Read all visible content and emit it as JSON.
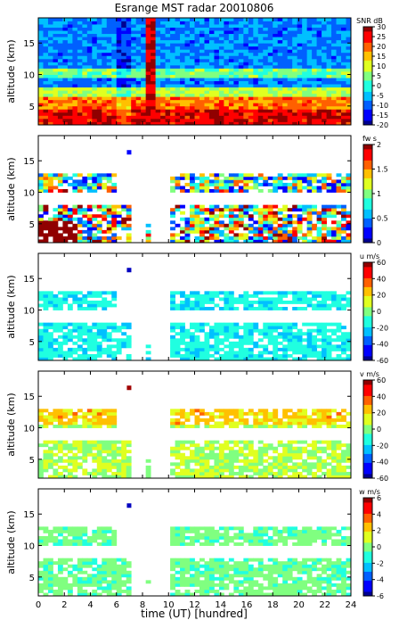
{
  "title": "Esrange MST radar 20010806",
  "xlabel": "time (UT)   [hundred]",
  "colormap": [
    "#000090",
    "#0000ff",
    "#0060ff",
    "#00c0ff",
    "#20ffe0",
    "#80ff80",
    "#e0ff20",
    "#ffc000",
    "#ff6000",
    "#ff0000",
    "#900000"
  ],
  "chart_data": [
    {
      "type": "heatmap",
      "ylabel": "altitude (km)",
      "xlim": [
        0,
        24
      ],
      "ylim": [
        2,
        19
      ],
      "xticks": [
        0,
        2,
        4,
        6,
        8,
        10,
        12,
        14,
        16,
        18,
        20,
        22,
        24
      ],
      "yticks": [
        5,
        10,
        15
      ],
      "colorbar": {
        "label": "SNR dB",
        "range": [
          -20,
          30
        ],
        "ticks": [
          -20,
          -15,
          -10,
          -5,
          0,
          5,
          10,
          15,
          20,
          25,
          30
        ]
      },
      "field": "snr"
    },
    {
      "type": "heatmap",
      "ylabel": "altitude (km)",
      "xlim": [
        0,
        24
      ],
      "ylim": [
        2,
        19
      ],
      "xticks": [
        0,
        2,
        4,
        6,
        8,
        10,
        12,
        14,
        16,
        18,
        20,
        22,
        24
      ],
      "yticks": [
        5,
        10,
        15
      ],
      "colorbar": {
        "label": "fw s",
        "range": [
          0,
          2
        ],
        "ticks": [
          0,
          0.5,
          1,
          1.5,
          2
        ]
      },
      "field": "width"
    },
    {
      "type": "heatmap",
      "ylabel": "altitude (km)",
      "xlim": [
        0,
        24
      ],
      "ylim": [
        2,
        19
      ],
      "xticks": [
        0,
        2,
        4,
        6,
        8,
        10,
        12,
        14,
        16,
        18,
        20,
        22,
        24
      ],
      "yticks": [
        5,
        10,
        15
      ],
      "colorbar": {
        "label": "u m/s",
        "range": [
          -60,
          60
        ],
        "ticks": [
          -60,
          -40,
          -20,
          0,
          20,
          40,
          60
        ]
      },
      "field": "u"
    },
    {
      "type": "heatmap",
      "ylabel": "altitude (km)",
      "xlim": [
        0,
        24
      ],
      "ylim": [
        2,
        19
      ],
      "xticks": [
        0,
        2,
        4,
        6,
        8,
        10,
        12,
        14,
        16,
        18,
        20,
        22,
        24
      ],
      "yticks": [
        5,
        10,
        15
      ],
      "colorbar": {
        "label": "v m/s",
        "range": [
          -60,
          60
        ],
        "ticks": [
          -60,
          -40,
          -20,
          0,
          20,
          40,
          60
        ]
      },
      "field": "v"
    },
    {
      "type": "heatmap",
      "ylabel": "altitude (km)",
      "xlim": [
        0,
        24
      ],
      "ylim": [
        2,
        19
      ],
      "xticks": [
        0,
        2,
        4,
        6,
        8,
        10,
        12,
        14,
        16,
        18,
        20,
        22,
        24
      ],
      "yticks": [
        5,
        10,
        15
      ],
      "colorbar": {
        "label": "w m/s",
        "range": [
          -6,
          6
        ],
        "ticks": [
          -6,
          -4,
          -2,
          0,
          2,
          4,
          6
        ]
      },
      "field": "w"
    }
  ]
}
